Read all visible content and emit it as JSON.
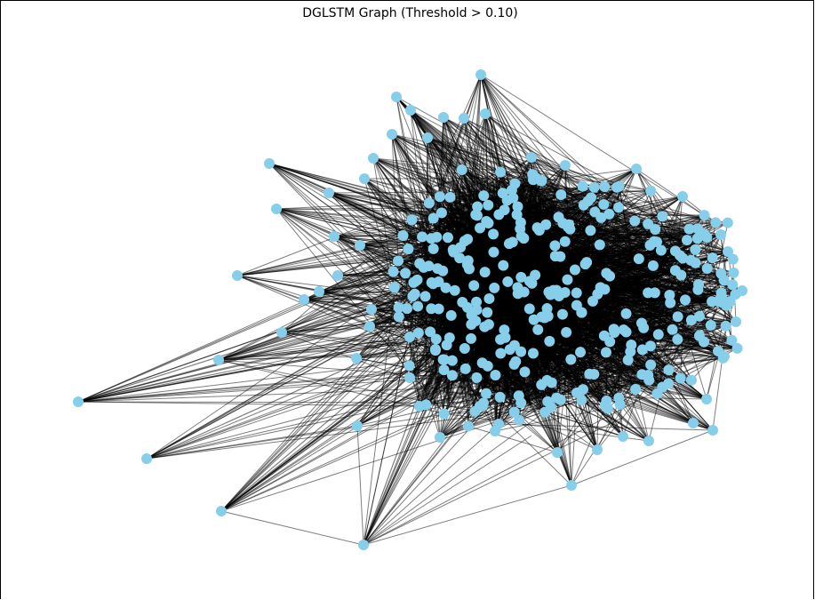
{
  "title": "DGLSTM Graph (Threshold > 0.10)",
  "style": {
    "node_color": "#87CEEB",
    "edge_color": "#000000",
    "edge_opacity": 0.5,
    "background": "#ffffff"
  },
  "chart_data": {
    "type": "network",
    "title": "DGLSTM Graph (Threshold > 0.10)",
    "threshold": 0.1,
    "node_count_estimate": 300,
    "layout": "spring",
    "axes_visible": false
  }
}
